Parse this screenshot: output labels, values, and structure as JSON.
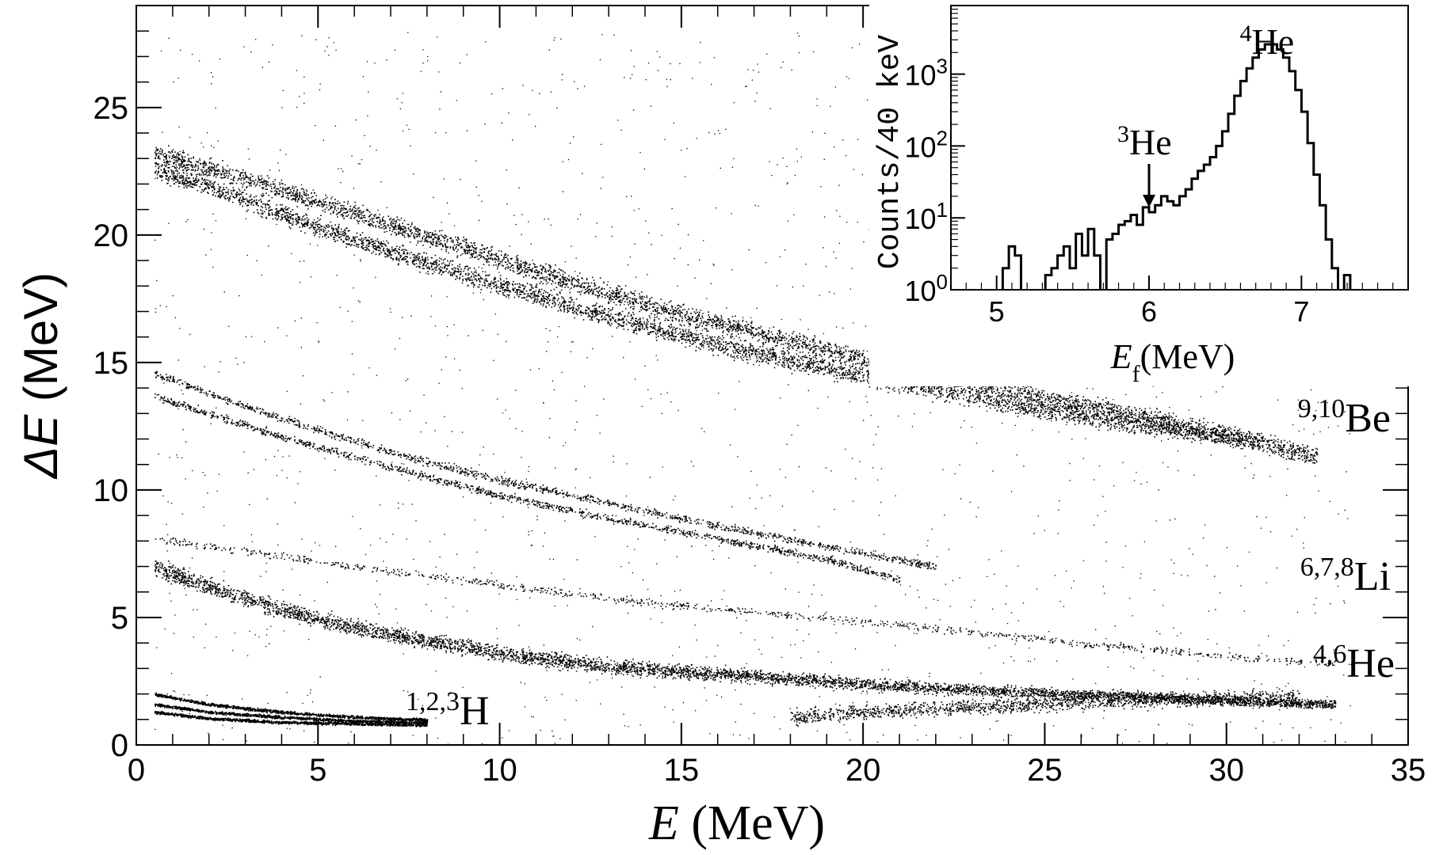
{
  "chart_data": [
    {
      "type": "scatter",
      "title": "",
      "xlabel": {
        "var": "E",
        "unit": " (MeV)"
      },
      "ylabel": {
        "var": "ΔE",
        "unit": " (MeV)"
      },
      "xlim": [
        0,
        35
      ],
      "ylim": [
        0,
        29
      ],
      "xticks": [
        "0",
        "5",
        "10",
        "15",
        "20",
        "25",
        "30",
        "35"
      ],
      "yticks": [
        "0",
        "5",
        "10",
        "15",
        "20",
        "25"
      ],
      "grid": false,
      "series": [
        {
          "label": {
            "sup": "9,10",
            "base": "Be"
          },
          "bands": [
            {
              "x": [
                0.5,
                2,
                5,
                8,
                12,
                16,
                20,
                24,
                28,
                31
              ],
              "y": [
                22.6,
                21.9,
                20.3,
                18.9,
                17.2,
                15.7,
                14.5,
                13.4,
                12.5,
                11.9
              ]
            },
            {
              "x": [
                0.5,
                3,
                7,
                11,
                15,
                19,
                23,
                27,
                30,
                32.5
              ],
              "y": [
                23.2,
                22.2,
                20.4,
                18.6,
                16.9,
                15.5,
                14.2,
                13.1,
                12.2,
                11.3
              ]
            }
          ]
        },
        {
          "label": {
            "sup": "6,7,8",
            "base": "Li"
          },
          "bands": [
            {
              "x": [
                0.5,
                2,
                4,
                7,
                10,
                13,
                16,
                19,
                21
              ],
              "y": [
                13.7,
                13.0,
                12.1,
                10.9,
                9.8,
                8.9,
                8.1,
                7.3,
                6.5
              ]
            },
            {
              "x": [
                0.5,
                2,
                4,
                7,
                10,
                13,
                16,
                19,
                22
              ],
              "y": [
                14.6,
                13.8,
                12.8,
                11.5,
                10.4,
                9.5,
                8.6,
                7.8,
                7.0
              ]
            },
            {
              "x": [
                0.5,
                3,
                6,
                10,
                14,
                18,
                22,
                26,
                30,
                33
              ],
              "y": [
                8.1,
                7.6,
                7.0,
                6.3,
                5.6,
                5.1,
                4.6,
                4.0,
                3.5,
                3.2
              ]
            }
          ]
        },
        {
          "label": {
            "sup": "4,6",
            "base": "He"
          },
          "bands": [
            {
              "x": [
                0.5,
                2,
                4,
                6,
                8,
                10,
                13,
                16,
                20,
                24,
                28,
                31,
                33
              ],
              "y": [
                7.0,
                6.2,
                5.3,
                4.6,
                4.1,
                3.6,
                3.1,
                2.8,
                2.4,
                2.1,
                1.9,
                1.7,
                1.6
              ]
            },
            {
              "x": [
                18,
                20,
                23,
                26,
                29,
                32
              ],
              "y": [
                1.1,
                1.3,
                1.5,
                1.7,
                1.8,
                1.9
              ]
            }
          ]
        },
        {
          "label": {
            "sup": "1,2,3",
            "base": "H"
          },
          "bands": [
            {
              "x": [
                0.5,
                2,
                4,
                6,
                8
              ],
              "y": [
                2.0,
                1.6,
                1.3,
                1.1,
                1.0
              ]
            },
            {
              "x": [
                0.5,
                2,
                4,
                6,
                8
              ],
              "y": [
                1.6,
                1.3,
                1.1,
                0.95,
                0.9
              ]
            },
            {
              "x": [
                0.5,
                2,
                4,
                6,
                8
              ],
              "y": [
                1.3,
                1.05,
                0.9,
                0.85,
                0.8
              ]
            }
          ]
        }
      ]
    },
    {
      "type": "histogram",
      "title": "",
      "xlabel": {
        "var": "E",
        "sub": "f",
        "unit": "(MeV)"
      },
      "ylabel": "Counts/40 keV",
      "yscale": "log",
      "xlim": [
        4.7,
        7.7
      ],
      "ylim": [
        1,
        9000
      ],
      "xticks": [
        "5",
        "6",
        "7"
      ],
      "yticks": [
        {
          "base": "10",
          "exp": "0"
        },
        {
          "base": "10",
          "exp": "1"
        },
        {
          "base": "10",
          "exp": "2"
        },
        {
          "base": "10",
          "exp": "3"
        }
      ],
      "bin_width_mev": 0.04,
      "bins": [
        {
          "x": 5.06,
          "y": 2
        },
        {
          "x": 5.1,
          "y": 4
        },
        {
          "x": 5.14,
          "y": 3
        },
        {
          "x": 5.34,
          "y": 1.6
        },
        {
          "x": 5.38,
          "y": 2
        },
        {
          "x": 5.42,
          "y": 3
        },
        {
          "x": 5.46,
          "y": 4
        },
        {
          "x": 5.5,
          "y": 2
        },
        {
          "x": 5.54,
          "y": 6
        },
        {
          "x": 5.58,
          "y": 3
        },
        {
          "x": 5.62,
          "y": 7
        },
        {
          "x": 5.66,
          "y": 3
        },
        {
          "x": 5.74,
          "y": 5
        },
        {
          "x": 5.78,
          "y": 6
        },
        {
          "x": 5.82,
          "y": 8
        },
        {
          "x": 5.86,
          "y": 9
        },
        {
          "x": 5.9,
          "y": 11
        },
        {
          "x": 5.94,
          "y": 8
        },
        {
          "x": 5.98,
          "y": 14
        },
        {
          "x": 6.02,
          "y": 12
        },
        {
          "x": 6.06,
          "y": 15
        },
        {
          "x": 6.1,
          "y": 20
        },
        {
          "x": 6.14,
          "y": 17
        },
        {
          "x": 6.18,
          "y": 15
        },
        {
          "x": 6.22,
          "y": 20
        },
        {
          "x": 6.26,
          "y": 25
        },
        {
          "x": 6.3,
          "y": 35
        },
        {
          "x": 6.34,
          "y": 45
        },
        {
          "x": 6.38,
          "y": 55
        },
        {
          "x": 6.42,
          "y": 70
        },
        {
          "x": 6.46,
          "y": 100
        },
        {
          "x": 6.5,
          "y": 160
        },
        {
          "x": 6.54,
          "y": 280
        },
        {
          "x": 6.58,
          "y": 500
        },
        {
          "x": 6.62,
          "y": 800
        },
        {
          "x": 6.66,
          "y": 1200
        },
        {
          "x": 6.7,
          "y": 1700
        },
        {
          "x": 6.74,
          "y": 2200
        },
        {
          "x": 6.78,
          "y": 2600
        },
        {
          "x": 6.82,
          "y": 2600
        },
        {
          "x": 6.86,
          "y": 2200
        },
        {
          "x": 6.9,
          "y": 1700
        },
        {
          "x": 6.94,
          "y": 1100
        },
        {
          "x": 6.98,
          "y": 600
        },
        {
          "x": 7.02,
          "y": 300
        },
        {
          "x": 7.06,
          "y": 110
        },
        {
          "x": 7.1,
          "y": 40
        },
        {
          "x": 7.14,
          "y": 15
        },
        {
          "x": 7.18,
          "y": 5
        },
        {
          "x": 7.22,
          "y": 2
        },
        {
          "x": 7.3,
          "y": 1.6
        }
      ],
      "annotations": [
        {
          "sup": "4",
          "base": "He",
          "x": 6.8
        },
        {
          "sup": "3",
          "base": "He",
          "x": 6.0,
          "arrow_to_count": 12
        }
      ]
    }
  ]
}
